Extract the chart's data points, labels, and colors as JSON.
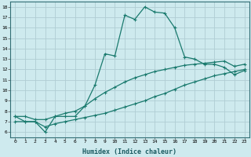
{
  "xlabel": "Humidex (Indice chaleur)",
  "bg_color": "#ceeaee",
  "grid_color": "#b8d8de",
  "line_color": "#1a7a6e",
  "xlim": [
    -0.5,
    23.5
  ],
  "ylim": [
    5.5,
    18.5
  ],
  "xticks": [
    0,
    1,
    2,
    3,
    4,
    5,
    6,
    7,
    8,
    9,
    10,
    11,
    12,
    13,
    14,
    15,
    16,
    17,
    18,
    19,
    20,
    21,
    22,
    23
  ],
  "yticks": [
    6,
    7,
    8,
    9,
    10,
    11,
    12,
    13,
    14,
    15,
    16,
    17,
    18
  ],
  "series1_x": [
    0,
    1,
    2,
    3,
    4,
    5,
    6,
    7,
    8,
    9,
    10,
    11,
    12,
    13,
    14,
    15,
    16,
    17,
    18,
    19,
    20,
    21,
    22,
    23
  ],
  "series1_y": [
    7.5,
    7.0,
    7.0,
    6.0,
    7.5,
    7.5,
    7.5,
    8.5,
    10.5,
    13.5,
    13.3,
    17.2,
    16.8,
    18.0,
    17.5,
    17.4,
    16.0,
    13.2,
    13.0,
    12.5,
    12.5,
    12.2,
    11.5,
    11.9
  ],
  "series2_x": [
    0,
    1,
    2,
    3,
    4,
    5,
    6,
    7,
    8,
    9,
    10,
    11,
    12,
    13,
    14,
    15,
    16,
    17,
    18,
    19,
    20,
    21,
    22,
    23
  ],
  "series2_y": [
    7.5,
    7.5,
    7.2,
    7.2,
    7.5,
    7.8,
    8.0,
    8.5,
    9.2,
    9.8,
    10.3,
    10.8,
    11.2,
    11.5,
    11.8,
    12.0,
    12.2,
    12.4,
    12.5,
    12.6,
    12.7,
    12.8,
    12.3,
    12.5
  ],
  "series3_x": [
    0,
    1,
    2,
    3,
    4,
    5,
    6,
    7,
    8,
    9,
    10,
    11,
    12,
    13,
    14,
    15,
    16,
    17,
    18,
    19,
    20,
    21,
    22,
    23
  ],
  "series3_y": [
    7.0,
    7.0,
    7.0,
    6.5,
    6.8,
    7.0,
    7.2,
    7.4,
    7.6,
    7.8,
    8.1,
    8.4,
    8.7,
    9.0,
    9.4,
    9.7,
    10.1,
    10.5,
    10.8,
    11.1,
    11.4,
    11.6,
    11.8,
    12.0
  ]
}
